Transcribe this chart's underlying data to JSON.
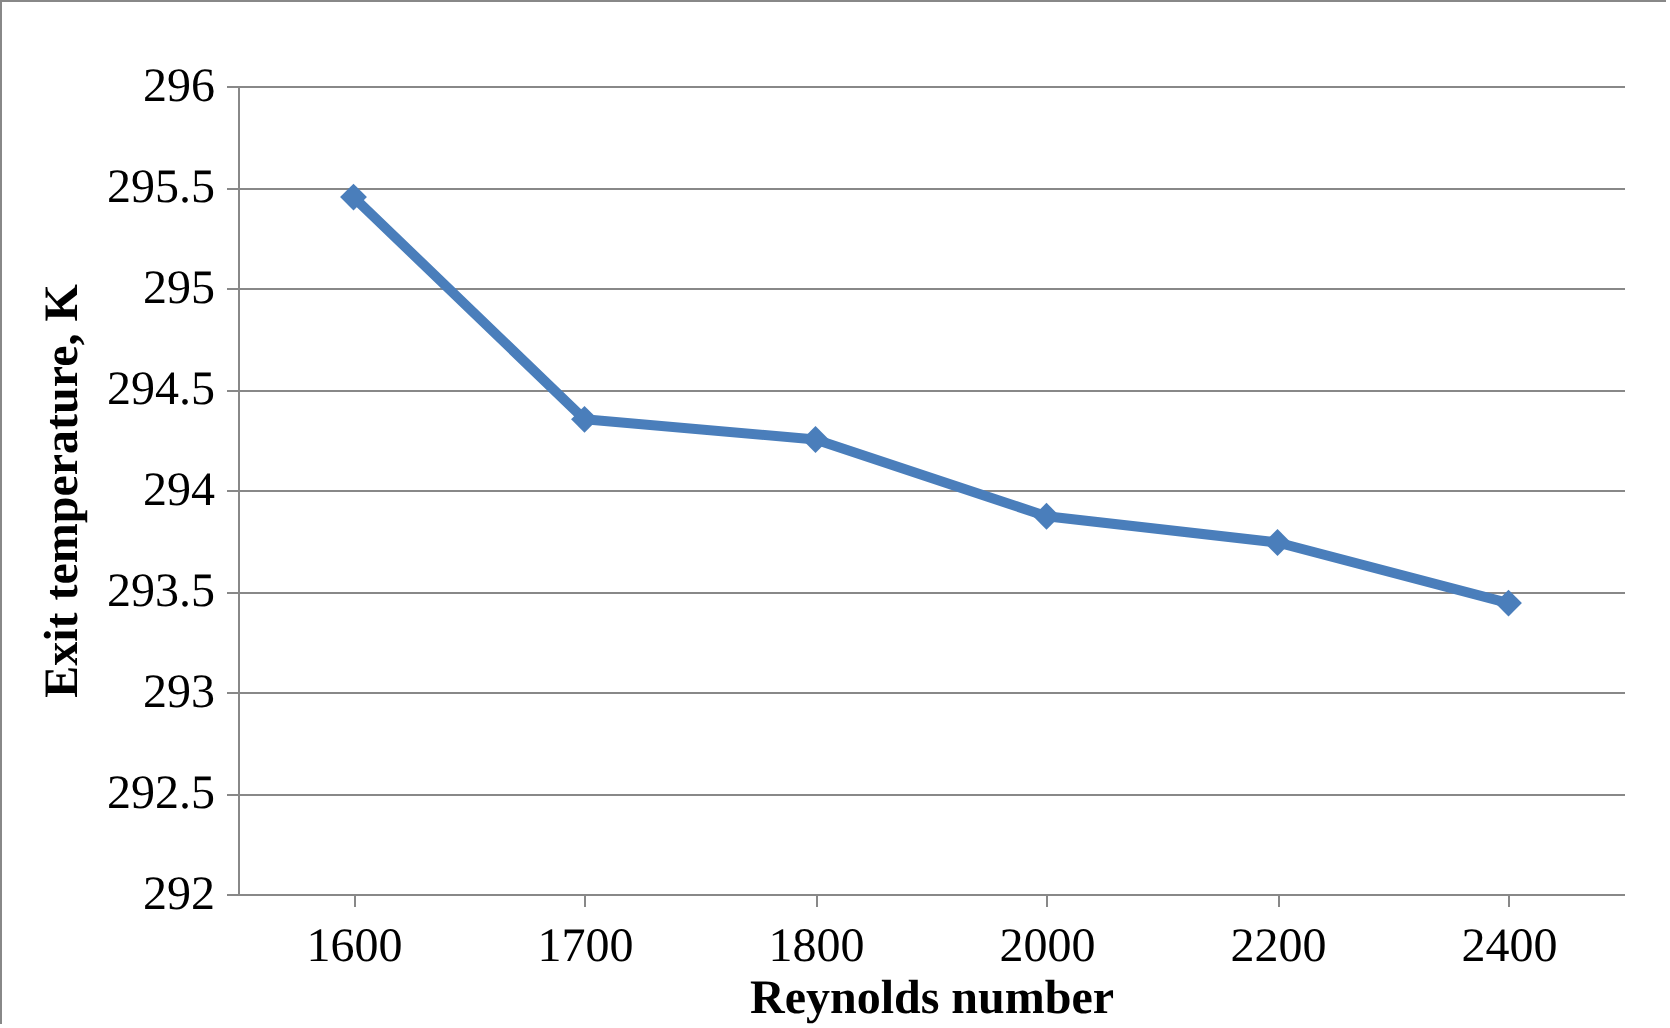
{
  "chart_data": {
    "type": "line",
    "xlabel": "Reynolds number",
    "ylabel": "Exit temperature, K",
    "categories": [
      "1600",
      "1700",
      "1800",
      "2000",
      "2200",
      "2400"
    ],
    "series": [
      {
        "color": "#4a7ebb",
        "values": [
          295.45,
          294.35,
          294.25,
          293.87,
          293.74,
          293.44
        ]
      }
    ],
    "ylim": [
      292,
      296
    ],
    "yticks": [
      292,
      292.5,
      293,
      293.5,
      294,
      294.5,
      295,
      295.5,
      296
    ],
    "grid": "y",
    "marker": "diamond",
    "line_style": "solid",
    "legend": false
  }
}
